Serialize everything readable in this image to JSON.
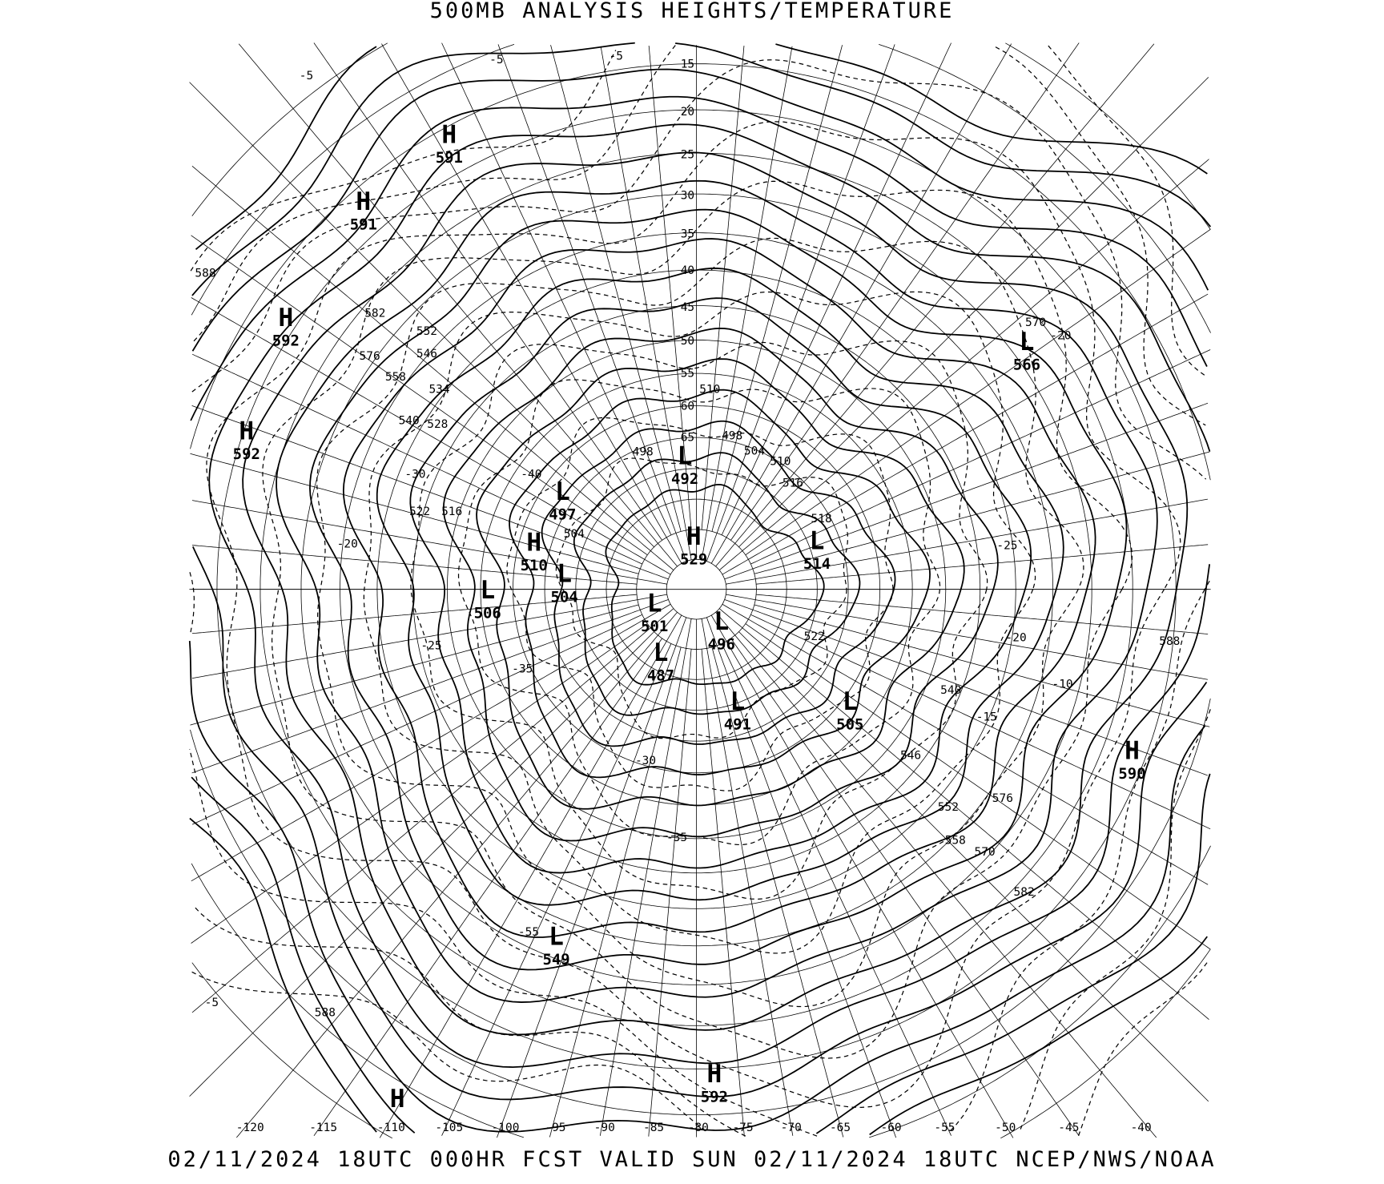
{
  "header": {
    "title": "500MB ANALYSIS  HEIGHTS/TEMPERATURE"
  },
  "footer": {
    "caption": "02/11/2024 18UTC 000HR FCST VALID SUN 02/11/2024 18UTC  NCEP/NWS/NOAA"
  },
  "colors": {
    "ink": "#000000",
    "background": "#ffffff"
  },
  "longitude_labels": [
    "-120",
    "-115",
    "-110",
    "-105",
    "-100",
    "-95",
    "-90",
    "-85",
    "-80",
    "-75",
    "-70",
    "-65",
    "-60",
    "-55",
    "-50",
    "-45",
    "-40"
  ],
  "latitude_labels": [
    "15",
    "20",
    "25",
    "30",
    "35",
    "40",
    "45",
    "50",
    "55",
    "60",
    "65"
  ],
  "pressure_centers": [
    {
      "type": "H",
      "value": "591"
    },
    {
      "type": "H",
      "value": "591"
    },
    {
      "type": "H",
      "value": "592"
    },
    {
      "type": "H",
      "value": "592"
    },
    {
      "type": "L",
      "value": "566"
    },
    {
      "type": "L",
      "value": "492"
    },
    {
      "type": "L",
      "value": "497"
    },
    {
      "type": "H",
      "value": "510"
    },
    {
      "type": "L",
      "value": "504"
    },
    {
      "type": "L",
      "value": "506"
    },
    {
      "type": "H",
      "value": "529"
    },
    {
      "type": "L",
      "value": "514"
    },
    {
      "type": "L",
      "value": "501"
    },
    {
      "type": "L",
      "value": "496"
    },
    {
      "type": "L",
      "value": "487"
    },
    {
      "type": "L",
      "value": "491"
    },
    {
      "type": "L",
      "value": "505"
    },
    {
      "type": "H",
      "value": "590"
    },
    {
      "type": "L",
      "value": "549"
    },
    {
      "type": "H",
      "value": "592"
    },
    {
      "type": "H",
      "value": ""
    }
  ],
  "contour_labels": [
    "588",
    "582",
    "576",
    "558",
    "552",
    "546",
    "540",
    "534",
    "528",
    "522",
    "516",
    "504",
    "510",
    "498",
    "498",
    "504",
    "510",
    "516",
    "518",
    "522",
    "540",
    "546",
    "552",
    "558",
    "570",
    "576",
    "582",
    "588",
    "588",
    "570"
  ],
  "temperature_labels": [
    "-5",
    "-5",
    "-5",
    "-25",
    "-20",
    "-10",
    "-15",
    "-25",
    "-35",
    "-30",
    "-35",
    "-30",
    "-20",
    "-40",
    "-20",
    "-5",
    "-55"
  ]
}
